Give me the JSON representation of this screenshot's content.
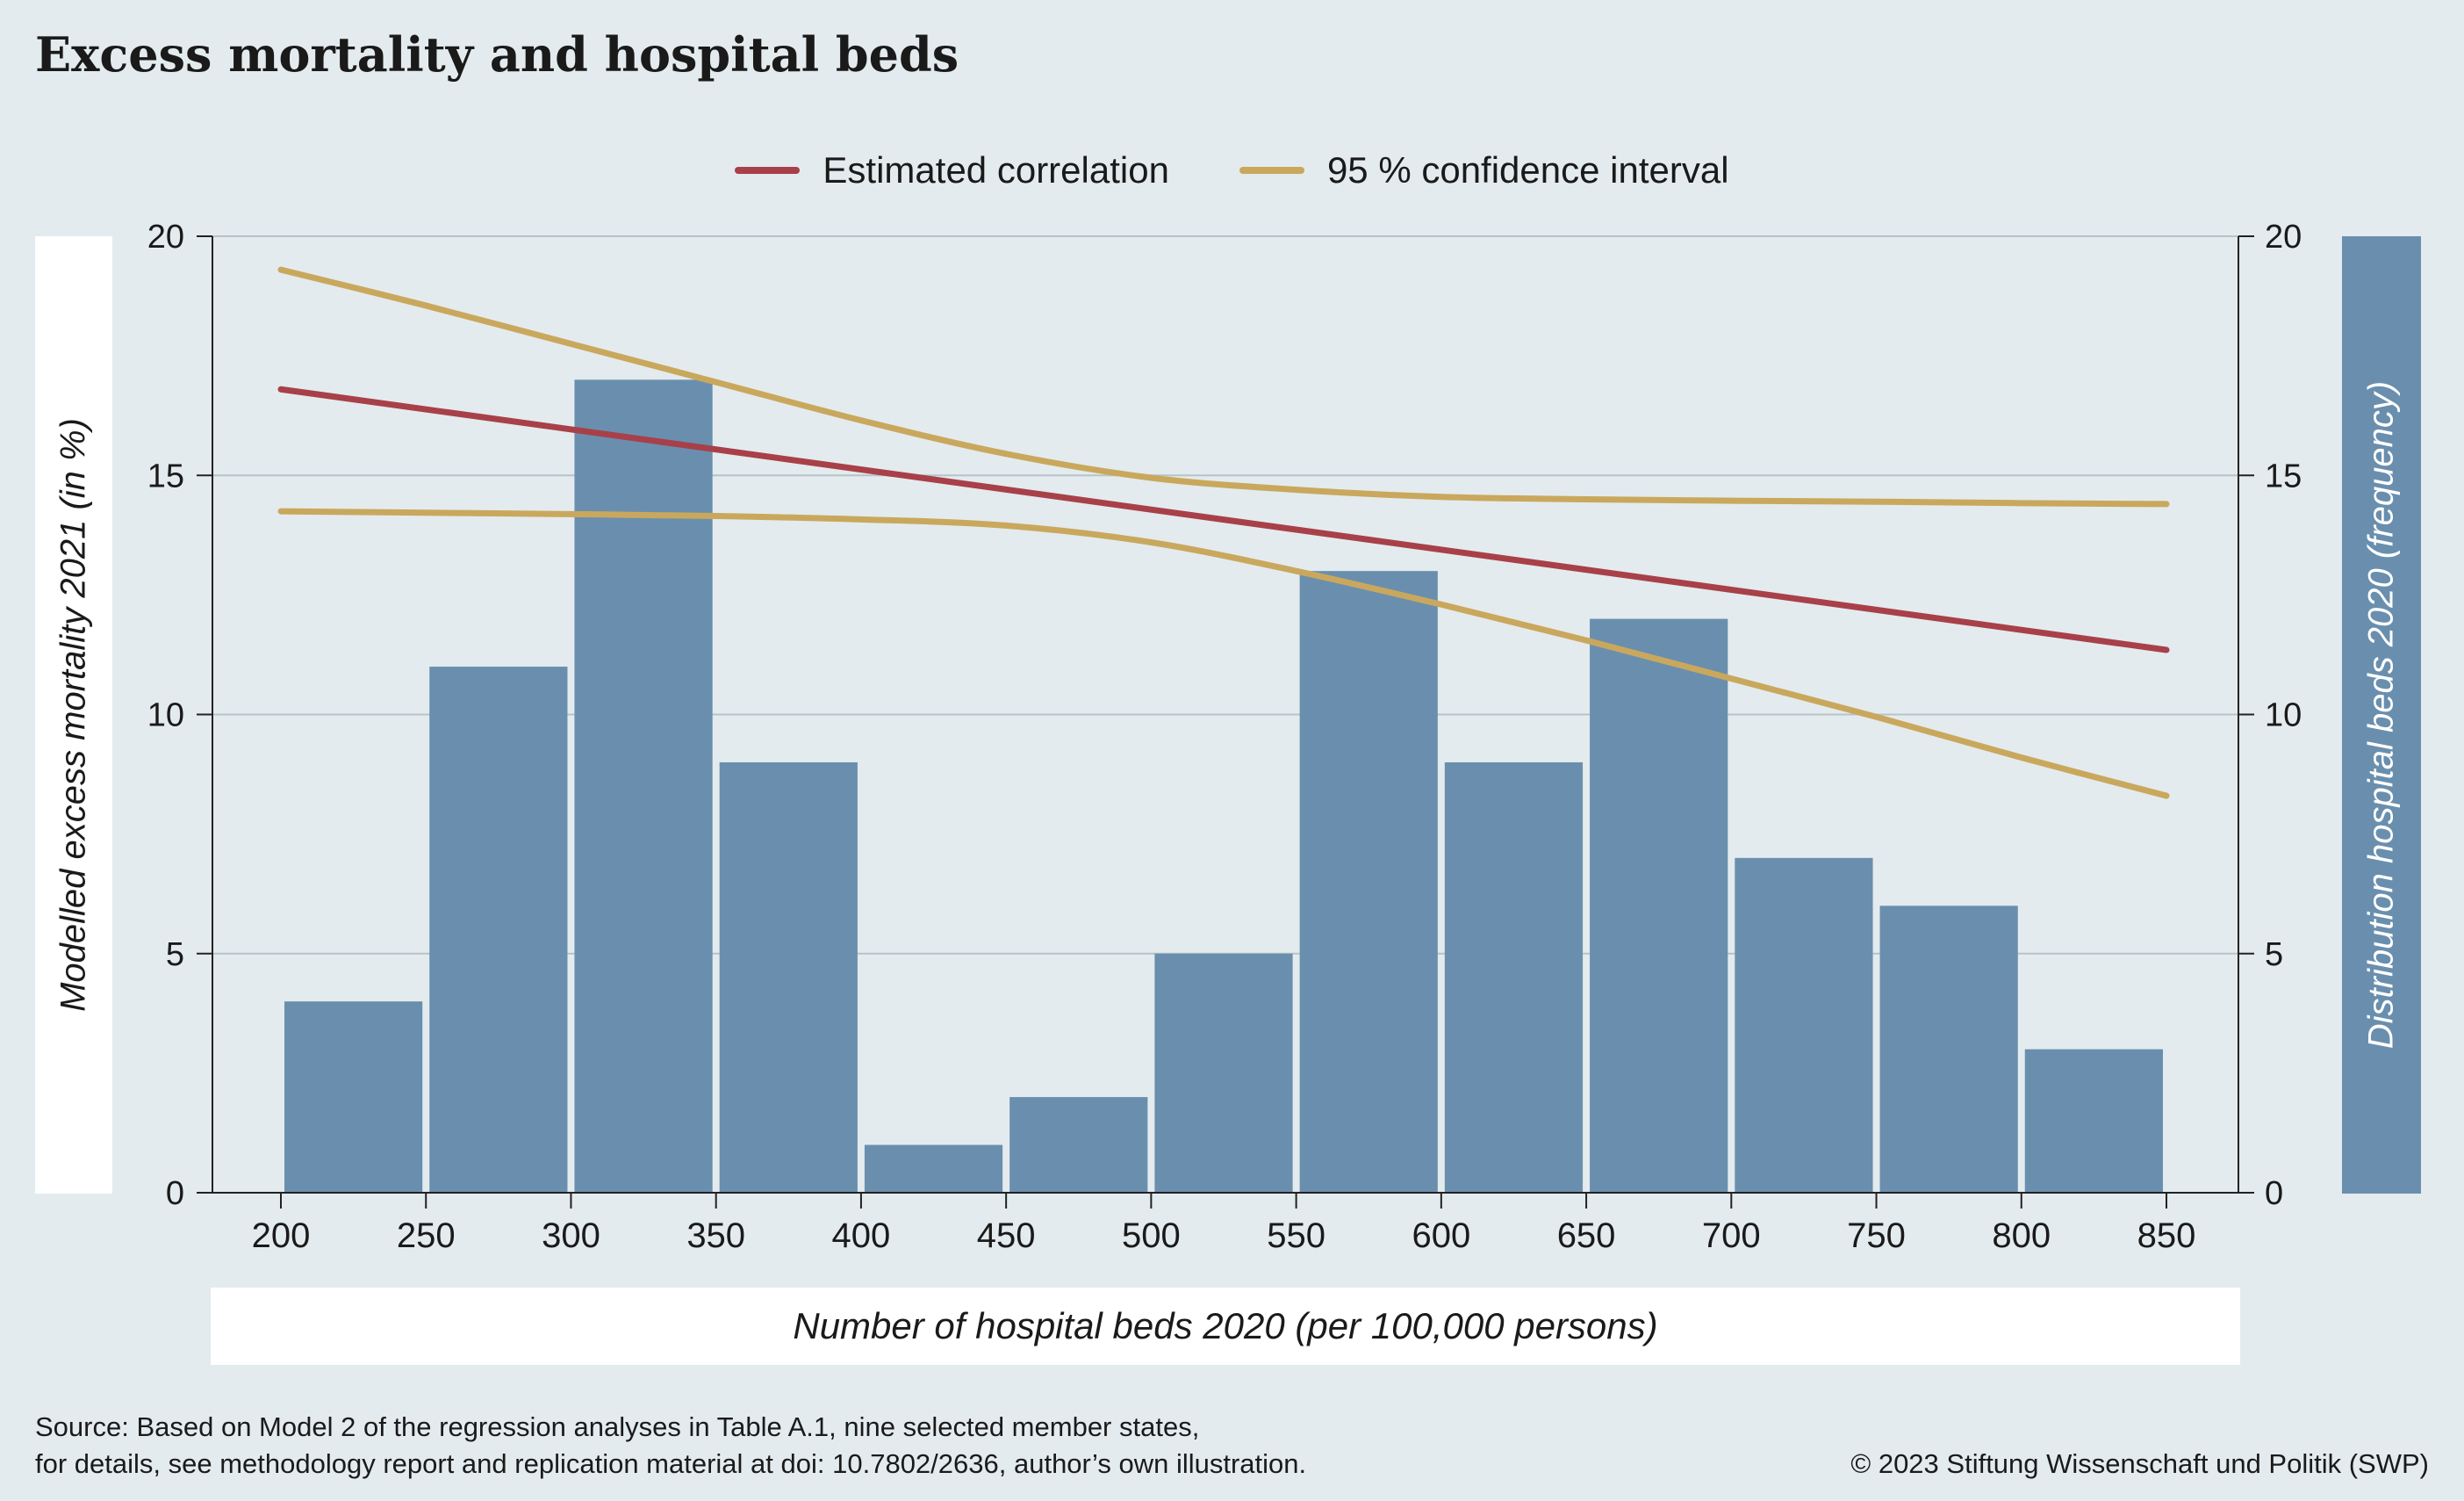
{
  "title": "Excess mortality and hospital beds",
  "legend": {
    "estimated": "Estimated correlation",
    "ci": "95 % confidence interval"
  },
  "colors": {
    "bars": "#6a8fae",
    "estimated": "#a8404a",
    "ci": "#c9a85d",
    "grid": "#b8c3c8",
    "background": "#e3ebee"
  },
  "source_lines": [
    "Source: Based on Model 2 of the regression analyses in Table A.1, nine selected member states,",
    "for details, see methodology report and replication material at doi: 10.7802/2636, author’s own illustration."
  ],
  "copyright": "© 2023 Stiftung Wissenschaft und Politik (SWP)",
  "chart_data": {
    "type": "bar",
    "title": "Excess mortality and hospital beds",
    "xlabel": "Number of hospital beds 2020 (per 100,000 persons)",
    "ylabel_left": "Modelled excess mortality 2021 (in %)",
    "ylabel_right": "Distribution hospital beds 2020 (frequency)",
    "xlim": [
      200,
      850
    ],
    "ylim": [
      0,
      20
    ],
    "x_ticks": [
      200,
      250,
      300,
      350,
      400,
      450,
      500,
      550,
      600,
      650,
      700,
      750,
      800,
      850
    ],
    "y_ticks": [
      0,
      5,
      10,
      15,
      20
    ],
    "grid": true,
    "legend_position": "top-center",
    "histogram": {
      "bin_starts": [
        200,
        250,
        300,
        350,
        400,
        450,
        500,
        550,
        600,
        650,
        700,
        750,
        800
      ],
      "bin_width": 50,
      "frequencies": [
        4,
        11,
        17,
        9,
        1,
        2,
        5,
        13,
        9,
        12,
        7,
        6,
        3
      ]
    },
    "lines": [
      {
        "name": "Estimated correlation",
        "x": [
          200,
          850
        ],
        "y": [
          16.8,
          11.35
        ]
      },
      {
        "name": "95 % confidence interval",
        "x": [
          200,
          250,
          300,
          350,
          400,
          450,
          500,
          550,
          600,
          650,
          700,
          750,
          800,
          850
        ],
        "y": [
          19.3,
          18.55,
          17.75,
          16.95,
          16.15,
          15.45,
          14.95,
          14.7,
          14.55,
          14.5,
          14.47,
          14.45,
          14.42,
          14.4
        ]
      },
      {
        "name": "95 % confidence interval",
        "x": [
          200,
          250,
          300,
          350,
          400,
          450,
          500,
          550,
          600,
          650,
          700,
          750,
          800,
          850
        ],
        "y": [
          14.25,
          14.22,
          14.19,
          14.15,
          14.08,
          13.95,
          13.6,
          13.0,
          12.3,
          11.55,
          10.75,
          9.95,
          9.1,
          8.3
        ]
      }
    ]
  }
}
